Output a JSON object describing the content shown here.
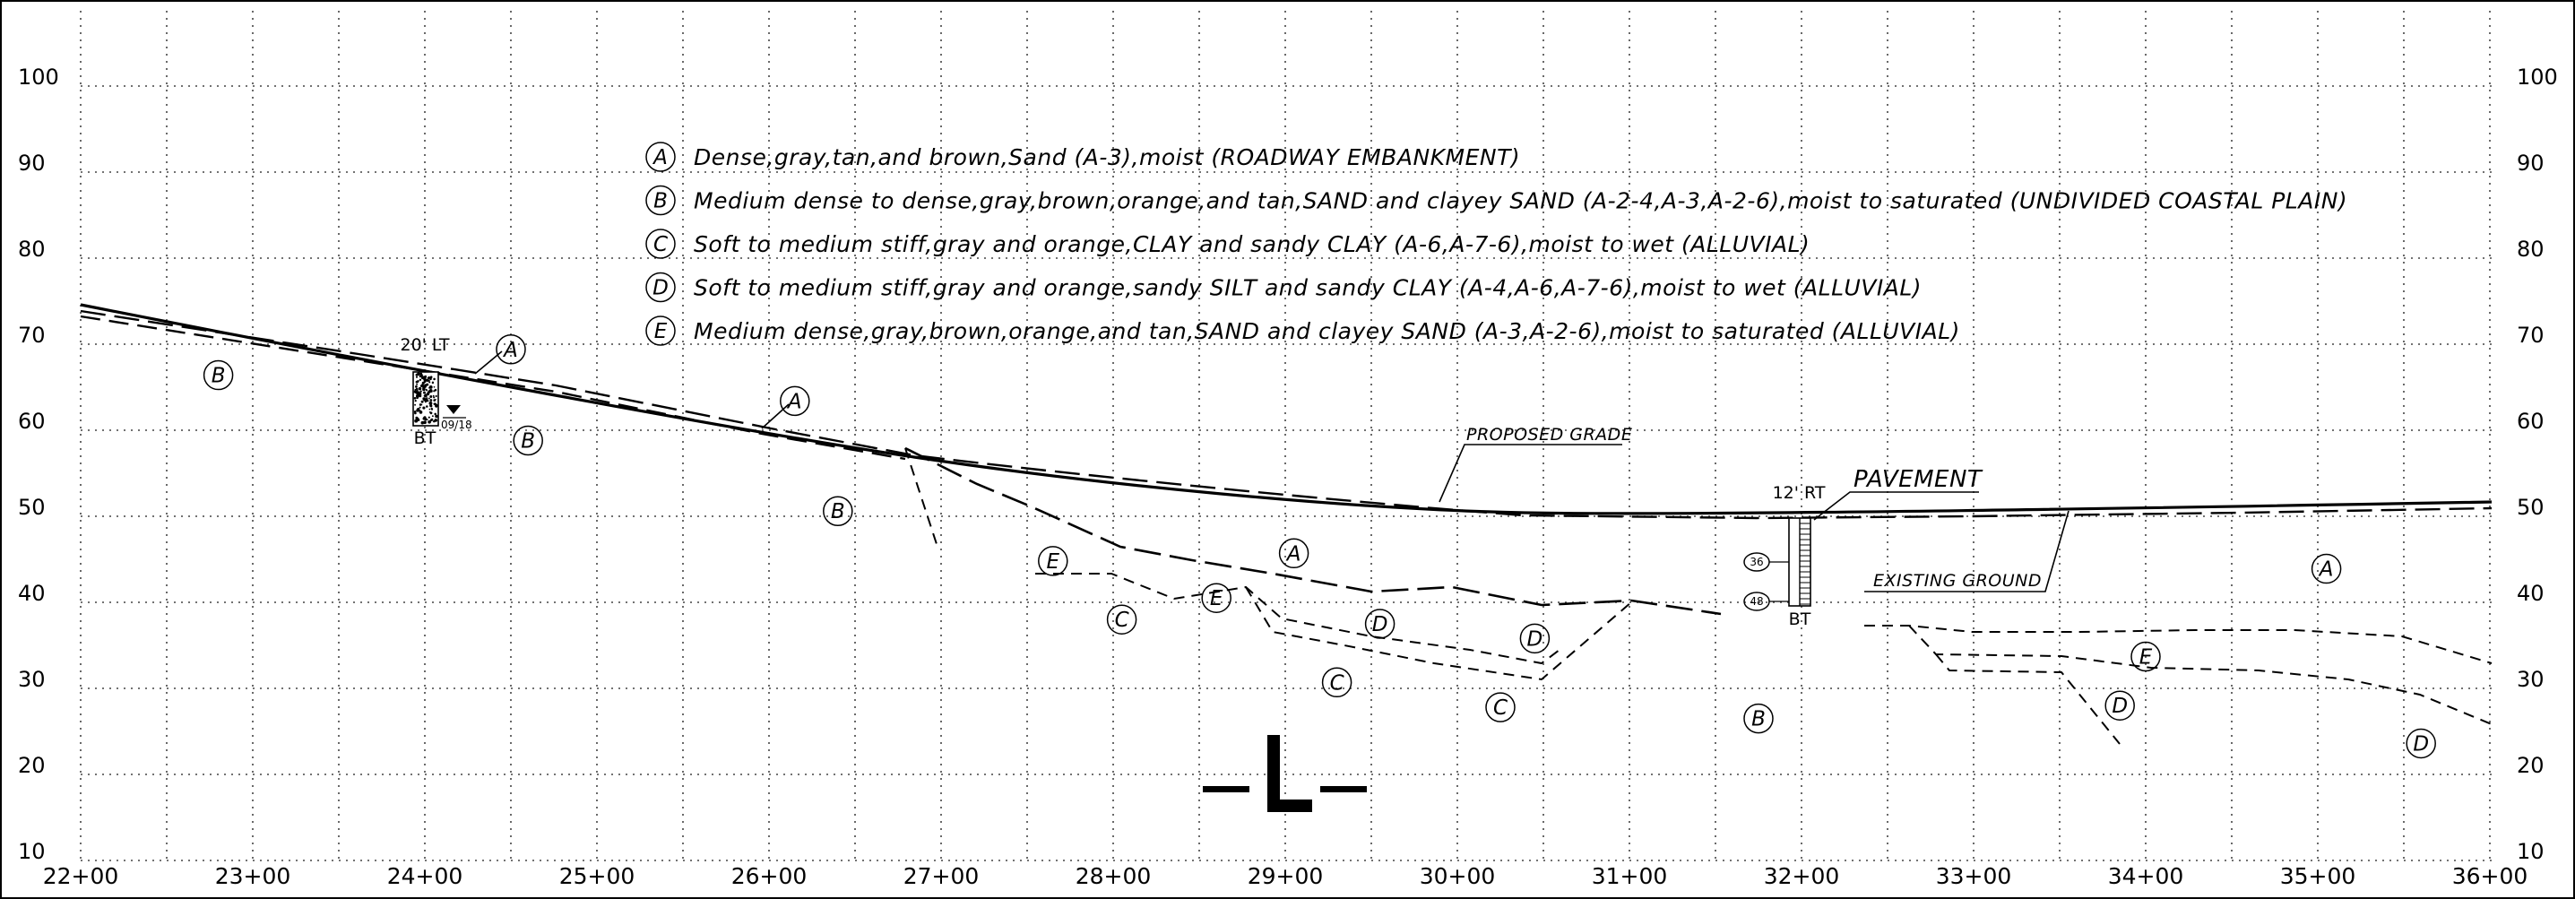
{
  "profile": {
    "elevation_range": [
      10,
      100
    ],
    "elevation_ticks": [
      100,
      90,
      80,
      70,
      60,
      50,
      40,
      30,
      20,
      10
    ],
    "station_labels": [
      "22+00",
      "23+00",
      "24+00",
      "25+00",
      "26+00",
      "27+00",
      "28+00",
      "29+00",
      "30+00",
      "31+00",
      "32+00",
      "33+00",
      "34+00",
      "35+00",
      "36+00"
    ],
    "centerline_symbol": "L"
  },
  "legend": [
    {
      "letter": "A",
      "text": "Dense,gray,tan,and brown,Sand (A-3),moist (ROADWAY EMBANKMENT)"
    },
    {
      "letter": "B",
      "text": "Medium dense to dense,gray,brown,orange,and tan,SAND and clayey SAND (A-2-4,A-3,A-2-6),moist to saturated (UNDIVIDED COASTAL PLAIN)"
    },
    {
      "letter": "C",
      "text": "Soft to medium stiff,gray and orange,CLAY and sandy CLAY (A-6,A-7-6),moist to wet (ALLUVIAL)"
    },
    {
      "letter": "D",
      "text": "Soft to medium stiff,gray and orange,sandy SILT and sandy CLAY (A-4,A-6,A-7-6),moist to wet (ALLUVIAL)"
    },
    {
      "letter": "E",
      "text": "Medium dense,gray,brown,orange,and tan,SAND and clayey SAND (A-3,A-2-6),moist to saturated (ALLUVIAL)"
    }
  ],
  "callouts": {
    "proposed_grade": "PROPOSED GRADE",
    "existing_ground": "EXISTING GROUND",
    "pavement": "PAVEMENT"
  },
  "borings": [
    {
      "offset": "20' LT",
      "label": "BT",
      "water_date": "09/18"
    },
    {
      "offset": "12' RT",
      "label": "BT",
      "blow_counts": [
        "36",
        "48"
      ]
    }
  ],
  "layer_labels": [
    {
      "letter": "B",
      "station": "22+80",
      "elevation": 66.4
    },
    {
      "letter": "A",
      "station": "24+50",
      "elevation": 69.4
    },
    {
      "letter": "B",
      "station": "24+60",
      "elevation": 58.8
    },
    {
      "letter": "A",
      "station": "26+15",
      "elevation": 63.4
    },
    {
      "letter": "B",
      "station": "26+40",
      "elevation": 50.6
    },
    {
      "letter": "E",
      "station": "27+65",
      "elevation": 44.8
    },
    {
      "letter": "A",
      "station": "29+05",
      "elevation": 45.7
    },
    {
      "letter": "C",
      "station": "28+05",
      "elevation": 38.0
    },
    {
      "letter": "E",
      "station": "28+60",
      "elevation": 40.5
    },
    {
      "letter": "D",
      "station": "29+55",
      "elevation": 37.5
    },
    {
      "letter": "D",
      "station": "30+45",
      "elevation": 35.8
    },
    {
      "letter": "C",
      "station": "29+30",
      "elevation": 30.7
    },
    {
      "letter": "C",
      "station": "30+25",
      "elevation": 27.8
    },
    {
      "letter": "B",
      "station": "31+75",
      "elevation": 26.5
    },
    {
      "letter": "E",
      "station": "34+00",
      "elevation": 33.7
    },
    {
      "letter": "D",
      "station": "33+85",
      "elevation": 28.0
    },
    {
      "letter": "A",
      "station": "35+05",
      "elevation": 43.9
    },
    {
      "letter": "D",
      "station": "35+60",
      "elevation": 23.6
    }
  ]
}
